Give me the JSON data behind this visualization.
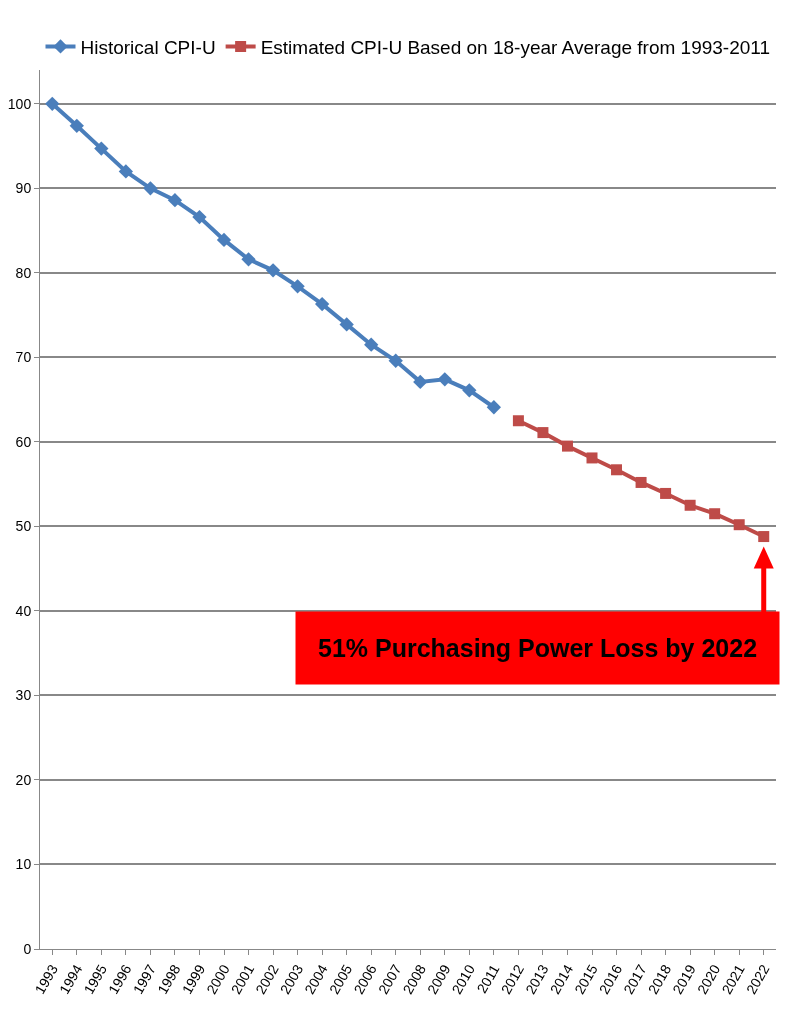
{
  "chart_data": {
    "type": "line",
    "categories": [
      "1993",
      "1994",
      "1995",
      "1996",
      "1997",
      "1998",
      "1999",
      "2000",
      "2001",
      "2002",
      "2003",
      "2004",
      "2005",
      "2006",
      "2007",
      "2008",
      "2009",
      "2010",
      "2011",
      "2012",
      "2013",
      "2014",
      "2015",
      "2016",
      "2017",
      "2018",
      "2019",
      "2020",
      "2021",
      "2022"
    ],
    "series": [
      {
        "name": "Historical CPI-U",
        "color": "#4a7ebb",
        "marker": "diamond",
        "values": [
          100,
          97.4,
          94.7,
          92.0,
          90.0,
          88.6,
          86.6,
          83.9,
          81.6,
          80.3,
          78.4,
          76.3,
          73.9,
          71.5,
          69.6,
          67.1,
          67.4,
          66.1,
          64.1,
          null,
          null,
          null,
          null,
          null,
          null,
          null,
          null,
          null,
          null,
          null
        ]
      },
      {
        "name": "Estimated CPI-U Based on 18-year Average from 1993-2011",
        "color": "#be4b48",
        "marker": "square",
        "values": [
          null,
          null,
          null,
          null,
          null,
          null,
          null,
          null,
          null,
          null,
          null,
          null,
          null,
          null,
          null,
          null,
          null,
          null,
          null,
          62.5,
          61.1,
          59.5,
          58.1,
          56.7,
          55.2,
          53.9,
          52.5,
          51.5,
          50.2,
          48.8
        ]
      }
    ],
    "ylim": [
      0,
      104
    ],
    "yticks": [
      0,
      10,
      20,
      30,
      40,
      50,
      60,
      70,
      80,
      90,
      100
    ],
    "grid": "y",
    "legend": "top",
    "annotations": [
      "51% Purchasing Power Loss by 2022"
    ]
  }
}
